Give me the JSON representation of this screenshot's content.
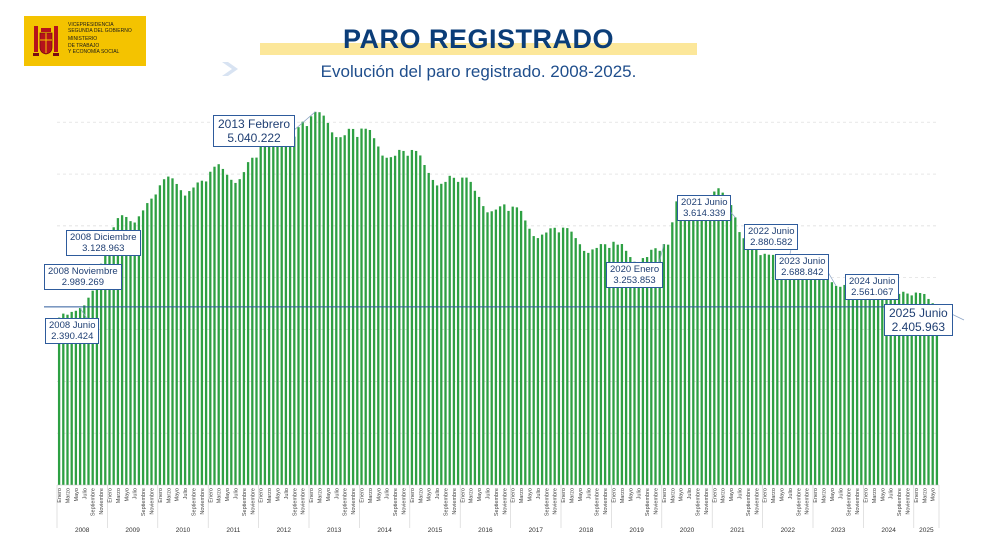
{
  "logo": {
    "lines": [
      "VICEPRESIDENCIA",
      "SEGUNDA DEL GOBIERNO",
      "MINISTERIO",
      "DE TRABAJO",
      "Y ECONOMÍA SOCIAL"
    ]
  },
  "header": {
    "title": "PARO REGISTRADO",
    "subtitle": "Evolución del paro registrado. 2008-2025."
  },
  "colors": {
    "bar": "#2ea043",
    "reference_line": "#2e5b9c",
    "title": "#0b3d78",
    "highlight": "#fce79a",
    "logo_bg": "#f4c300"
  },
  "chart_data": {
    "type": "bar",
    "title": "Evolución del paro registrado. 2008-2025.",
    "unit": "personas",
    "months_per_bar": 1,
    "start": "2008 Enero",
    "end": "2025 Junio",
    "ylim": [
      0,
      5200000
    ],
    "grid": true,
    "month_labels_shown": [
      "Enero",
      "Marzo",
      "Mayo",
      "Julio",
      "Septiembre",
      "Noviembre"
    ],
    "years": [
      "2008",
      "2009",
      "2010",
      "2011",
      "2012",
      "2013",
      "2014",
      "2015",
      "2016",
      "2017",
      "2018",
      "2019",
      "2020",
      "2021",
      "2022",
      "2023",
      "2024",
      "2025"
    ],
    "values": [
      2261000,
      2315000,
      2300000,
      2338000,
      2353000,
      2390424,
      2426000,
      2530000,
      2625000,
      2818000,
      2989269,
      3128963,
      3327000,
      3481000,
      3605000,
      3644000,
      3620000,
      3564000,
      3545000,
      3629000,
      3709000,
      3808000,
      3868000,
      3924000,
      4048000,
      4130000,
      4166000,
      4142000,
      4066000,
      3982000,
      3909000,
      3970000,
      4018000,
      4086000,
      4110000,
      4100000,
      4231000,
      4299000,
      4333000,
      4269000,
      4190000,
      4122000,
      4080000,
      4131000,
      4226000,
      4361000,
      4420000,
      4422000,
      4599000,
      4712000,
      4751000,
      4744000,
      4714000,
      4615000,
      4587000,
      4625000,
      4705000,
      4833000,
      4907000,
      4848000,
      4980000,
      5040222,
      5035000,
      4989000,
      4890000,
      4763000,
      4699000,
      4698000,
      4724000,
      4811000,
      4809000,
      4701000,
      4814000,
      4812000,
      4795000,
      4684000,
      4572000,
      4449000,
      4420000,
      4428000,
      4447000,
      4526000,
      4512000,
      4447000,
      4525000,
      4512000,
      4451000,
      4322000,
      4215000,
      4120000,
      4046000,
      4068000,
      4094000,
      4176000,
      4149000,
      4094000,
      4152000,
      4152000,
      4094000,
      3974000,
      3891000,
      3767000,
      3683000,
      3697000,
      3720000,
      3764000,
      3790000,
      3702000,
      3760000,
      3750000,
      3702000,
      3573000,
      3461000,
      3362000,
      3335000,
      3382000,
      3410000,
      3467000,
      3474000,
      3412000,
      3476000,
      3470000,
      3422000,
      3335000,
      3252000,
      3162000,
      3135000,
      3182000,
      3202000,
      3254000,
      3252000,
      3202000,
      3285000,
      3246000,
      3255000,
      3163000,
      3079000,
      3015000,
      3011000,
      3065000,
      3079000,
      3177000,
      3198000,
      3163000,
      3253853,
      3246000,
      3548000,
      3831000,
      3857000,
      3862000,
      3773000,
      3802000,
      3776000,
      3826000,
      3851000,
      3888000,
      3964000,
      4008000,
      3949000,
      3910000,
      3781000,
      3614339,
      3416000,
      3333000,
      3257000,
      3257000,
      3182000,
      3105000,
      3123000,
      3111000,
      3108000,
      2922000,
      2923000,
      2880582,
      2883000,
      2920000,
      2904000,
      2914000,
      2881000,
      2837000,
      2908000,
      2911000,
      2862000,
      2788000,
      2739000,
      2688842,
      2677000,
      2702000,
      2723000,
      2759000,
      2734000,
      2707000,
      2767000,
      2760000,
      2727000,
      2666000,
      2607000,
      2561067,
      2550000,
      2572000,
      2581000,
      2610000,
      2586000,
      2561000,
      2599000,
      2593000,
      2580000,
      2513000,
      2455000,
      2405963
    ],
    "annotations": [
      {
        "label": "2008 Junio",
        "value": "2.390.424",
        "month_index": 5
      },
      {
        "label": "2008 Noviembre",
        "value": "2.989.269",
        "month_index": 10
      },
      {
        "label": "2008 Diciembre",
        "value": "3.128.963",
        "month_index": 11
      },
      {
        "label": "2013 Febrero",
        "value": "5.040.222",
        "month_index": 61
      },
      {
        "label": "2020 Enero",
        "value": "3.253.853",
        "month_index": 144
      },
      {
        "label": "2021 Junio",
        "value": "3.614.339",
        "month_index": 161
      },
      {
        "label": "2022 Junio",
        "value": "2.880.582",
        "month_index": 173
      },
      {
        "label": "2023 Junio",
        "value": "2.688.842",
        "month_index": 185
      },
      {
        "label": "2024 Junio",
        "value": "2.561.067",
        "month_index": 197
      },
      {
        "label": "2025 Junio",
        "value": "2.405.963",
        "month_index": 209
      }
    ],
    "reference_line_value": 2405963
  }
}
